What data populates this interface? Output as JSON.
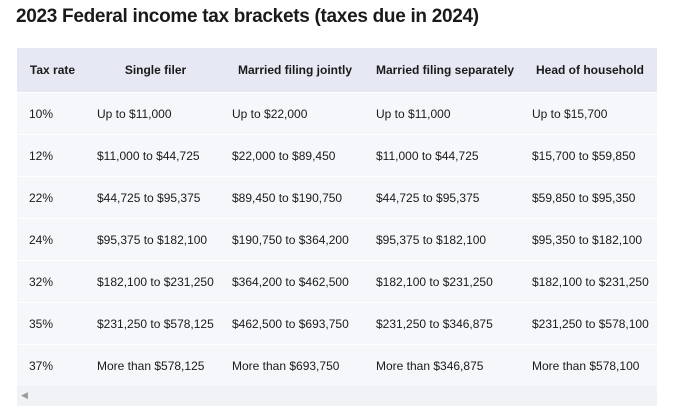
{
  "header": {
    "title": "2023 Federal income tax brackets (taxes due in 2024)"
  },
  "table": {
    "columns": [
      "Tax rate",
      "Single filer",
      "Married filing jointly",
      "Married filing separately",
      "Head of household"
    ],
    "rows": [
      [
        "10%",
        "Up to $11,000",
        "Up to $22,000",
        "Up to $11,000",
        "Up to $15,700"
      ],
      [
        "12%",
        "$11,000 to $44,725",
        "$22,000 to $89,450",
        "$11,000 to $44,725",
        "$15,700 to $59,850"
      ],
      [
        "22%",
        "$44,725 to $95,375",
        "$89,450 to $190,750",
        "$44,725 to $95,375",
        "$59,850 to $95,350"
      ],
      [
        "24%",
        "$95,375 to $182,100",
        "$190,750 to $364,200",
        "$95,375 to $182,100",
        "$95,350 to $182,100"
      ],
      [
        "32%",
        "$182,100 to $231,250",
        "$364,200 to $462,500",
        "$182,100 to $231,250",
        "$182,100 to $231,250"
      ],
      [
        "35%",
        "$231,250 to $578,125",
        "$462,500 to $693,750",
        "$231,250 to $346,875",
        "$231,250 to $578,100"
      ],
      [
        "37%",
        "More than $578,125",
        "More than $693,750",
        "More than $346,875",
        "More than $578,100"
      ]
    ]
  }
}
